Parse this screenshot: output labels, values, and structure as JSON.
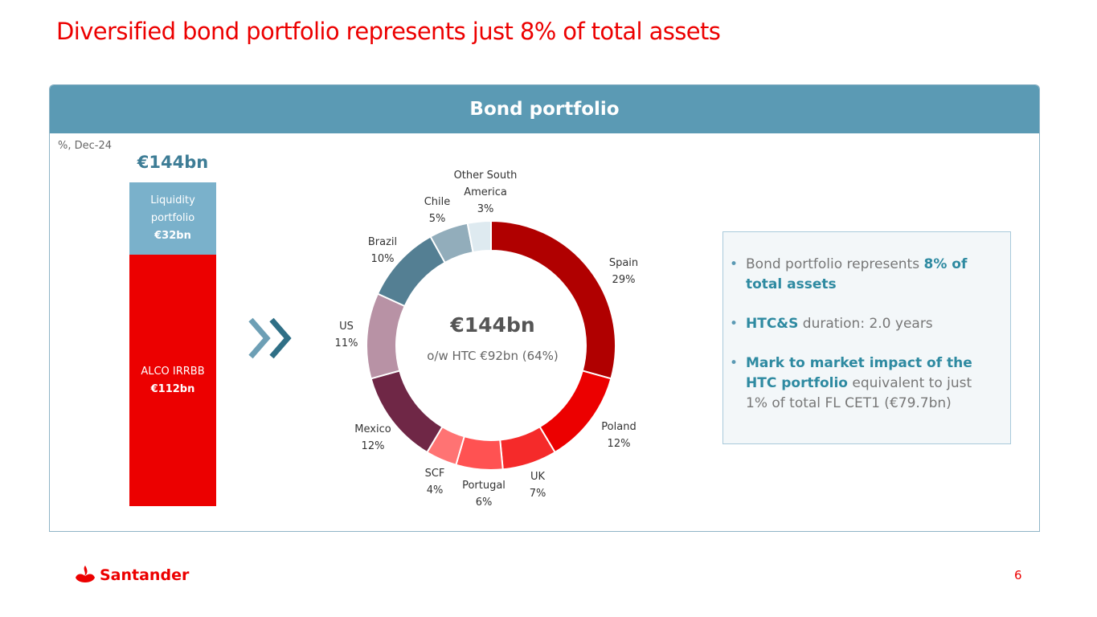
{
  "title": "Diversified bond portfolio represents just 8% of total assets",
  "panel": {
    "header": "Bond portfolio",
    "unit_note": "%, Dec-24"
  },
  "bar": {
    "total": "€144bn",
    "segments": [
      {
        "label1": "Liquidity",
        "label2": "portfolio",
        "value": "€32bn",
        "bn": 32,
        "color": "#7ab1cb"
      },
      {
        "label1": "ALCO IRRBB",
        "label2": "",
        "value": "€112bn",
        "bn": 112,
        "color": "#ec0000"
      }
    ]
  },
  "chart_data": {
    "type": "pie",
    "center_value": "€144bn",
    "center_sub": "o/w HTC €92bn (64%)",
    "slices": [
      {
        "name": "Spain",
        "value": 29,
        "label": "29%",
        "color": "#b00000"
      },
      {
        "name": "Poland",
        "value": 12,
        "label": "12%",
        "color": "#ec0000"
      },
      {
        "name": "UK",
        "value": 7,
        "label": "7%",
        "color": "#f52a2a"
      },
      {
        "name": "Portugal",
        "value": 6,
        "label": "6%",
        "color": "#ff5252"
      },
      {
        "name": "SCF",
        "value": 4,
        "label": "4%",
        "color": "#ff7373"
      },
      {
        "name": "Mexico",
        "value": 12,
        "label": "12%",
        "color": "#6f2746"
      },
      {
        "name": "US",
        "value": 11,
        "label": "11%",
        "color": "#b892a5"
      },
      {
        "name": "Brazil",
        "value": 10,
        "label": "10%",
        "color": "#547f93"
      },
      {
        "name": "Chile",
        "value": 5,
        "label": "5%",
        "color": "#92adbb"
      },
      {
        "name": "Other South America",
        "value": 3,
        "label": "3%",
        "color": "#deeaf0"
      }
    ],
    "slice_labels": [
      {
        "l1": "Spain",
        "l2": "29%"
      },
      {
        "l1": "Poland",
        "l2": "12%"
      },
      {
        "l1": "UK",
        "l2": "7%"
      },
      {
        "l1": "Portugal",
        "l2": "6%"
      },
      {
        "l1": "SCF",
        "l2": "4%"
      },
      {
        "l1": "Mexico",
        "l2": "12%"
      },
      {
        "l1": "US",
        "l2": "11%"
      },
      {
        "l1": "Brazil",
        "l2": "10%"
      },
      {
        "l1": "Chile",
        "l2": "5%"
      },
      {
        "l1": "Other South",
        "l2": "America",
        "l3": "3%"
      }
    ]
  },
  "info": {
    "b1": {
      "pre": "Bond portfolio represents ",
      "hl": "8% of total assets"
    },
    "b2": {
      "hl": "HTC&S",
      "post": " duration: 2.0 years"
    },
    "b3": {
      "hl": "Mark to market impact of the HTC portfolio",
      "post": " equivalent to just 1% of total FL CET1 (€79.7bn)"
    }
  },
  "footer": {
    "brand": "Santander",
    "page": "6"
  },
  "icons": {
    "arrows": "double-chevron-right-icon",
    "logo": "santander-flame-icon"
  }
}
